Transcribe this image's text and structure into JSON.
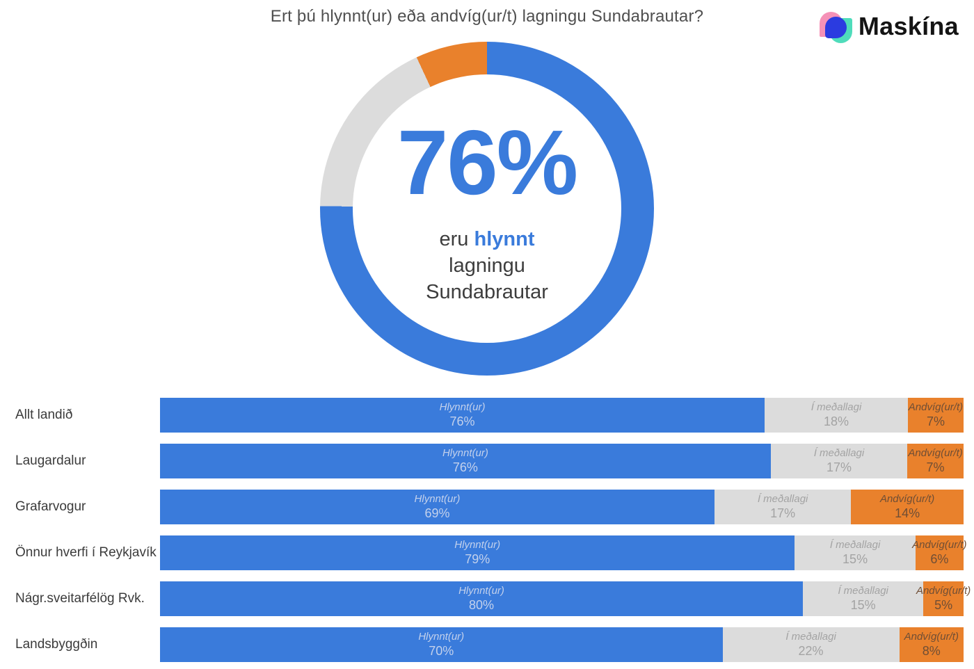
{
  "title": "Ert þú hlynnt(ur) eða andvíg(ur/t) lagningu Sundabrautar?",
  "logo": {
    "brand": "Maskína"
  },
  "donut_center": {
    "value": "76%",
    "line1_prefix": "eru ",
    "line1_highlight": "hlynnt",
    "line2": "lagningu",
    "line3": "Sundabrautar"
  },
  "colors": {
    "hlynnt_blue": "#3A7BDB",
    "medallagi_gray": "#DCDCDC",
    "andvig_orange": "#E9812C",
    "label_on_blue": "#C3D1EC",
    "label_on_gray": "#A3A3A3",
    "label_on_orange": "#6F4E35",
    "logo_pink": "#F591B7",
    "logo_teal": "#4FDCBB",
    "logo_blue": "#2B3BE0"
  },
  "chart_data": [
    {
      "type": "pie",
      "subtype": "donut",
      "title": "Ert þú hlynnt(ur) eða andvíg(ur/t) lagningu Sundabrautar?",
      "labels": [
        "Hlynnt(ur)",
        "Í meðallagi",
        "Andvíg(ur/t)"
      ],
      "values": [
        76,
        18,
        7
      ],
      "colors": [
        "#3A7BDB",
        "#DCDCDC",
        "#E9812C"
      ],
      "start_angle_deg": 0,
      "direction": "clockwise",
      "center_text": "76% eru hlynnt lagningu Sundabrautar"
    },
    {
      "type": "bar",
      "orientation": "horizontal",
      "stacked": true,
      "unit": "%",
      "categories": [
        "Allt landið",
        "Laugardalur",
        "Grafarvogur",
        "Önnur hverfi í Reykjavík",
        "Nágr.sveitarfélög Rvk.",
        "Landsbyggðin"
      ],
      "series": [
        {
          "name": "Hlynnt(ur)",
          "color": "#3A7BDB",
          "values": [
            76,
            76,
            69,
            79,
            80,
            70
          ]
        },
        {
          "name": "Í meðallagi",
          "color": "#DCDCDC",
          "values": [
            18,
            17,
            17,
            15,
            15,
            22
          ]
        },
        {
          "name": "Andvíg(ur/t)",
          "color": "#E9812C",
          "values": [
            7,
            7,
            14,
            6,
            5,
            8
          ]
        }
      ],
      "legend": "none",
      "grid": false,
      "value_labels": "inside, shown as percent"
    }
  ]
}
